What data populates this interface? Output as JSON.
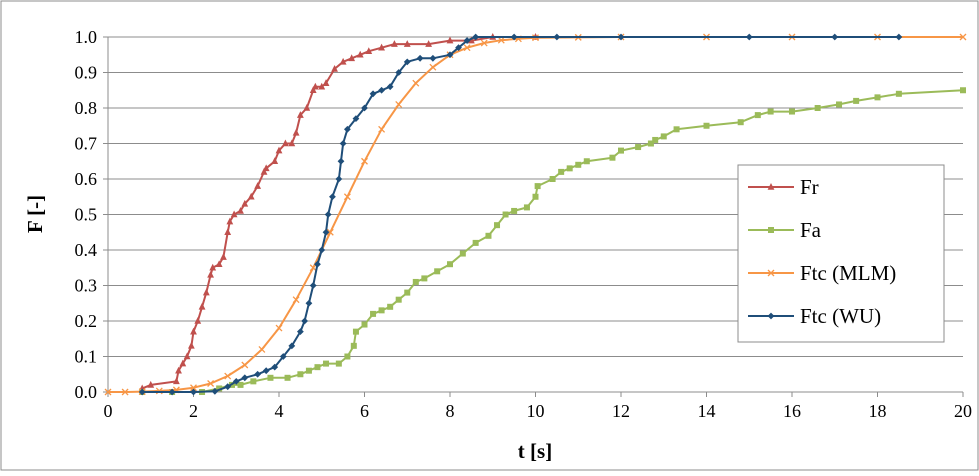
{
  "chart_data": {
    "type": "line",
    "title": "",
    "xlabel": "t [s]",
    "ylabel": "F [-]",
    "xlim": [
      0,
      20
    ],
    "ylim": [
      0,
      1
    ],
    "x_ticks": [
      "0",
      "2",
      "4",
      "6",
      "8",
      "10",
      "12",
      "14",
      "16",
      "18",
      "20"
    ],
    "y_ticks": [
      "0.0",
      "0.1",
      "0.2",
      "0.3",
      "0.4",
      "0.5",
      "0.6",
      "0.7",
      "0.8",
      "0.9",
      "1.0"
    ],
    "grid": "horizontal",
    "legend_position": "right",
    "series": [
      {
        "name": "Fr",
        "color": "#C0504D",
        "marker": "triangle",
        "points": [
          [
            0.8,
            0.01
          ],
          [
            1.0,
            0.02
          ],
          [
            1.6,
            0.03
          ],
          [
            1.65,
            0.06
          ],
          [
            1.75,
            0.08
          ],
          [
            1.85,
            0.1
          ],
          [
            1.95,
            0.13
          ],
          [
            2.0,
            0.17
          ],
          [
            2.1,
            0.2
          ],
          [
            2.2,
            0.24
          ],
          [
            2.3,
            0.28
          ],
          [
            2.4,
            0.33
          ],
          [
            2.45,
            0.35
          ],
          [
            2.6,
            0.36
          ],
          [
            2.7,
            0.38
          ],
          [
            2.8,
            0.45
          ],
          [
            2.85,
            0.48
          ],
          [
            2.95,
            0.5
          ],
          [
            3.1,
            0.51
          ],
          [
            3.2,
            0.53
          ],
          [
            3.35,
            0.55
          ],
          [
            3.5,
            0.58
          ],
          [
            3.65,
            0.62
          ],
          [
            3.7,
            0.63
          ],
          [
            3.9,
            0.65
          ],
          [
            4.0,
            0.68
          ],
          [
            4.15,
            0.7
          ],
          [
            4.3,
            0.7
          ],
          [
            4.4,
            0.73
          ],
          [
            4.5,
            0.78
          ],
          [
            4.65,
            0.8
          ],
          [
            4.8,
            0.85
          ],
          [
            4.85,
            0.86
          ],
          [
            5.0,
            0.86
          ],
          [
            5.1,
            0.87
          ],
          [
            5.3,
            0.91
          ],
          [
            5.5,
            0.93
          ],
          [
            5.7,
            0.94
          ],
          [
            5.9,
            0.95
          ],
          [
            6.1,
            0.96
          ],
          [
            6.4,
            0.97
          ],
          [
            6.7,
            0.98
          ],
          [
            7.0,
            0.98
          ],
          [
            7.5,
            0.98
          ],
          [
            8.0,
            0.99
          ],
          [
            8.5,
            0.99
          ],
          [
            9.0,
            1.0
          ],
          [
            10.0,
            1.0
          ]
        ]
      },
      {
        "name": "Fa",
        "color": "#9BBB59",
        "marker": "square",
        "points": [
          [
            0.8,
            0.0
          ],
          [
            1.5,
            0.0
          ],
          [
            2.2,
            0.0
          ],
          [
            2.6,
            0.01
          ],
          [
            2.9,
            0.02
          ],
          [
            3.1,
            0.02
          ],
          [
            3.4,
            0.03
          ],
          [
            3.8,
            0.04
          ],
          [
            4.2,
            0.04
          ],
          [
            4.5,
            0.05
          ],
          [
            4.7,
            0.06
          ],
          [
            4.9,
            0.07
          ],
          [
            5.1,
            0.08
          ],
          [
            5.4,
            0.08
          ],
          [
            5.6,
            0.1
          ],
          [
            5.75,
            0.13
          ],
          [
            5.8,
            0.17
          ],
          [
            6.0,
            0.19
          ],
          [
            6.2,
            0.22
          ],
          [
            6.4,
            0.23
          ],
          [
            6.6,
            0.24
          ],
          [
            6.8,
            0.26
          ],
          [
            7.0,
            0.28
          ],
          [
            7.2,
            0.31
          ],
          [
            7.4,
            0.32
          ],
          [
            7.7,
            0.34
          ],
          [
            8.0,
            0.36
          ],
          [
            8.3,
            0.39
          ],
          [
            8.6,
            0.42
          ],
          [
            8.9,
            0.44
          ],
          [
            9.1,
            0.47
          ],
          [
            9.3,
            0.5
          ],
          [
            9.5,
            0.51
          ],
          [
            9.8,
            0.52
          ],
          [
            10.0,
            0.55
          ],
          [
            10.05,
            0.58
          ],
          [
            10.4,
            0.6
          ],
          [
            10.6,
            0.62
          ],
          [
            10.8,
            0.63
          ],
          [
            11.0,
            0.64
          ],
          [
            11.2,
            0.65
          ],
          [
            11.8,
            0.66
          ],
          [
            12.0,
            0.68
          ],
          [
            12.4,
            0.69
          ],
          [
            12.7,
            0.7
          ],
          [
            12.8,
            0.71
          ],
          [
            13.0,
            0.72
          ],
          [
            13.3,
            0.74
          ],
          [
            14.0,
            0.75
          ],
          [
            14.8,
            0.76
          ],
          [
            15.2,
            0.78
          ],
          [
            15.5,
            0.79
          ],
          [
            16.0,
            0.79
          ],
          [
            16.6,
            0.8
          ],
          [
            17.1,
            0.81
          ],
          [
            17.5,
            0.82
          ],
          [
            18.0,
            0.83
          ],
          [
            18.5,
            0.84
          ],
          [
            20.0,
            0.85
          ]
        ]
      },
      {
        "name": "Ftc (MLM)",
        "color": "#F79646",
        "marker": "x",
        "points": [
          [
            0.0,
            0.0
          ],
          [
            0.4,
            0.0
          ],
          [
            0.8,
            0.001
          ],
          [
            1.2,
            0.003
          ],
          [
            1.6,
            0.006
          ],
          [
            2.0,
            0.012
          ],
          [
            2.4,
            0.024
          ],
          [
            2.8,
            0.045
          ],
          [
            3.2,
            0.076
          ],
          [
            3.6,
            0.12
          ],
          [
            4.0,
            0.18
          ],
          [
            4.4,
            0.26
          ],
          [
            4.8,
            0.35
          ],
          [
            5.2,
            0.45
          ],
          [
            5.6,
            0.55
          ],
          [
            6.0,
            0.65
          ],
          [
            6.4,
            0.74
          ],
          [
            6.8,
            0.81
          ],
          [
            7.2,
            0.87
          ],
          [
            7.6,
            0.915
          ],
          [
            8.0,
            0.95
          ],
          [
            8.4,
            0.97
          ],
          [
            8.8,
            0.983
          ],
          [
            9.2,
            0.991
          ],
          [
            9.6,
            0.995
          ],
          [
            10.0,
            0.998
          ],
          [
            11.0,
            0.999
          ],
          [
            12.0,
            1.0
          ],
          [
            14.0,
            1.0
          ],
          [
            16.0,
            1.0
          ],
          [
            18.0,
            1.0
          ],
          [
            20.0,
            1.0
          ]
        ]
      },
      {
        "name": "Ftc (WU)",
        "color": "#1F4E79",
        "marker": "diamond",
        "points": [
          [
            0.8,
            0.0
          ],
          [
            1.5,
            0.0
          ],
          [
            2.0,
            0.0
          ],
          [
            2.5,
            0.002
          ],
          [
            2.8,
            0.015
          ],
          [
            3.0,
            0.03
          ],
          [
            3.2,
            0.04
          ],
          [
            3.5,
            0.05
          ],
          [
            3.7,
            0.06
          ],
          [
            3.9,
            0.07
          ],
          [
            4.1,
            0.1
          ],
          [
            4.3,
            0.13
          ],
          [
            4.5,
            0.17
          ],
          [
            4.6,
            0.2
          ],
          [
            4.7,
            0.25
          ],
          [
            4.8,
            0.3
          ],
          [
            4.9,
            0.36
          ],
          [
            5.0,
            0.4
          ],
          [
            5.1,
            0.45
          ],
          [
            5.15,
            0.5
          ],
          [
            5.25,
            0.55
          ],
          [
            5.4,
            0.6
          ],
          [
            5.45,
            0.65
          ],
          [
            5.5,
            0.7
          ],
          [
            5.6,
            0.74
          ],
          [
            5.8,
            0.77
          ],
          [
            6.0,
            0.8
          ],
          [
            6.2,
            0.84
          ],
          [
            6.4,
            0.85
          ],
          [
            6.6,
            0.86
          ],
          [
            6.8,
            0.9
          ],
          [
            7.0,
            0.93
          ],
          [
            7.3,
            0.94
          ],
          [
            7.6,
            0.94
          ],
          [
            8.0,
            0.95
          ],
          [
            8.2,
            0.97
          ],
          [
            8.4,
            0.99
          ],
          [
            8.6,
            1.0
          ],
          [
            9.5,
            1.0
          ],
          [
            10.5,
            1.0
          ],
          [
            12.0,
            1.0
          ],
          [
            15.0,
            1.0
          ],
          [
            17.0,
            1.0
          ],
          [
            18.5,
            1.0
          ]
        ]
      }
    ]
  }
}
